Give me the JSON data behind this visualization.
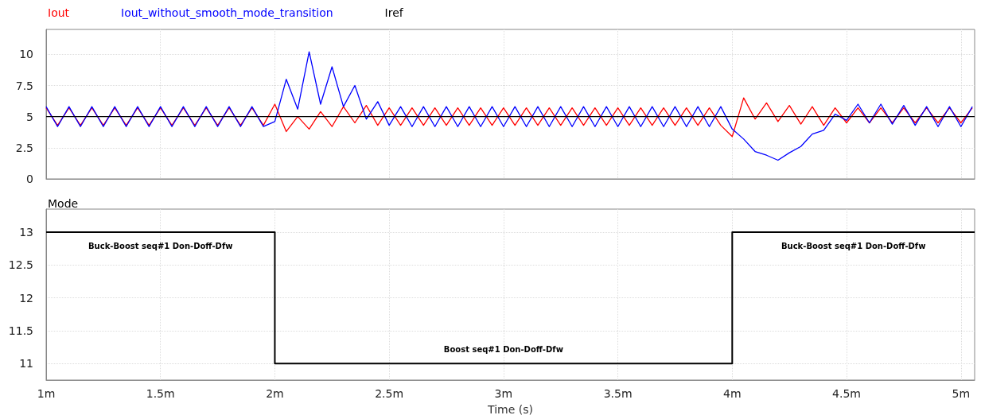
{
  "chart_data": [
    {
      "type": "line",
      "legend": "top left",
      "grid": true,
      "marker": "none",
      "line_style": "solid",
      "tick_labels": "y",
      "x": [
        1,
        1.05,
        1.1,
        1.15,
        1.2,
        1.25,
        1.3,
        1.35,
        1.4,
        1.45,
        1.5,
        1.55,
        1.6,
        1.65,
        1.7,
        1.75,
        1.8,
        1.85,
        1.9,
        1.95,
        2,
        2.05,
        2.1,
        2.15,
        2.2,
        2.25,
        2.3,
        2.35,
        2.4,
        2.45,
        2.5,
        2.55,
        2.6,
        2.65,
        2.7,
        2.75,
        2.8,
        2.85,
        2.9,
        2.95,
        3,
        3.05,
        3.1,
        3.15,
        3.2,
        3.25,
        3.3,
        3.35,
        3.4,
        3.45,
        3.5,
        3.55,
        3.6,
        3.65,
        3.7,
        3.75,
        3.8,
        3.85,
        3.9,
        3.95,
        4,
        4.05,
        4.1,
        4.15,
        4.2,
        4.25,
        4.3,
        4.35,
        4.4,
        4.45,
        4.5,
        4.55,
        4.6,
        4.65,
        4.7,
        4.75,
        4.8,
        4.85,
        4.9,
        4.95,
        5,
        5.05
      ],
      "xlim": [
        1,
        5.06
      ],
      "xticks": [
        1,
        1.5,
        2,
        2.5,
        3,
        3.5,
        4,
        4.5,
        5
      ],
      "ylim": [
        0,
        12
      ],
      "yticks": [
        0,
        2.5,
        5,
        7.5,
        10
      ],
      "series": [
        {
          "name": "Iout",
          "color": "#ff0000",
          "values": [
            5.7,
            4.3,
            5.7,
            4.3,
            5.7,
            4.3,
            5.7,
            4.3,
            5.7,
            4.3,
            5.7,
            4.3,
            5.7,
            4.3,
            5.7,
            4.3,
            5.7,
            4.3,
            5.7,
            4.3,
            6.0,
            3.8,
            5.0,
            4.0,
            5.4,
            4.2,
            5.8,
            4.5,
            5.9,
            4.3,
            5.7,
            4.3,
            5.7,
            4.3,
            5.7,
            4.3,
            5.7,
            4.3,
            5.7,
            4.3,
            5.7,
            4.3,
            5.7,
            4.3,
            5.7,
            4.3,
            5.7,
            4.3,
            5.7,
            4.3,
            5.7,
            4.3,
            5.7,
            4.3,
            5.7,
            4.3,
            5.7,
            4.3,
            5.7,
            4.3,
            3.4,
            6.5,
            4.8,
            6.1,
            4.6,
            5.9,
            4.4,
            5.8,
            4.3,
            5.7,
            4.5,
            5.7,
            4.5,
            5.7,
            4.5,
            5.7,
            4.5,
            5.7,
            4.5,
            5.7,
            4.5,
            5.7
          ]
        },
        {
          "name": "Iout_without_smooth_mode_transition",
          "color": "#0000ff",
          "values": [
            5.8,
            4.2,
            5.8,
            4.2,
            5.8,
            4.2,
            5.8,
            4.2,
            5.8,
            4.2,
            5.8,
            4.2,
            5.8,
            4.2,
            5.8,
            4.2,
            5.8,
            4.2,
            5.8,
            4.2,
            4.6,
            8.0,
            5.6,
            10.2,
            6.0,
            9.0,
            5.8,
            7.5,
            4.8,
            6.2,
            4.3,
            5.8,
            4.2,
            5.8,
            4.2,
            5.8,
            4.2,
            5.8,
            4.2,
            5.8,
            4.2,
            5.8,
            4.2,
            5.8,
            4.2,
            5.8,
            4.2,
            5.8,
            4.2,
            5.8,
            4.2,
            5.8,
            4.2,
            5.8,
            4.2,
            5.8,
            4.2,
            5.8,
            4.2,
            5.8,
            4.0,
            3.2,
            2.2,
            1.9,
            1.5,
            2.1,
            2.6,
            3.6,
            3.9,
            5.2,
            4.7,
            6.0,
            4.5,
            6.0,
            4.4,
            5.9,
            4.3,
            5.8,
            4.2,
            5.8,
            4.2,
            5.8
          ]
        },
        {
          "name": "Iref",
          "color": "#000000",
          "x": [
            1,
            5.06
          ],
          "values": [
            5,
            5
          ]
        }
      ]
    },
    {
      "type": "step",
      "legend": "top left",
      "grid": true,
      "marker": "none",
      "line_style": "solid",
      "xlabel": "Time (s)",
      "x": [
        1,
        2,
        4,
        5.06
      ],
      "xlim": [
        1,
        5.06
      ],
      "xticks": [
        {
          "value": 1,
          "label": "1m"
        },
        {
          "value": 1.5,
          "label": "1.5m"
        },
        {
          "value": 2,
          "label": "2m"
        },
        {
          "value": 2.5,
          "label": "2.5m"
        },
        {
          "value": 3,
          "label": "3m"
        },
        {
          "value": 3.5,
          "label": "3.5m"
        },
        {
          "value": 4,
          "label": "4m"
        },
        {
          "value": 4.5,
          "label": "4.5m"
        },
        {
          "value": 5,
          "label": "5m"
        }
      ],
      "ylim": [
        10.75,
        13.35
      ],
      "yticks": [
        11,
        11.5,
        12,
        12.5,
        13
      ],
      "series": [
        {
          "name": "Mode",
          "color": "#000000",
          "values": [
            13,
            11,
            13,
            13
          ]
        }
      ],
      "annotations": [
        "Buck-Boost seq#1 Don-Doff-Dfw",
        "Boost seq#1 Don-Doff-Dfw",
        "Buck-Boost seq#1 Don-Doff-Dfw"
      ]
    }
  ]
}
